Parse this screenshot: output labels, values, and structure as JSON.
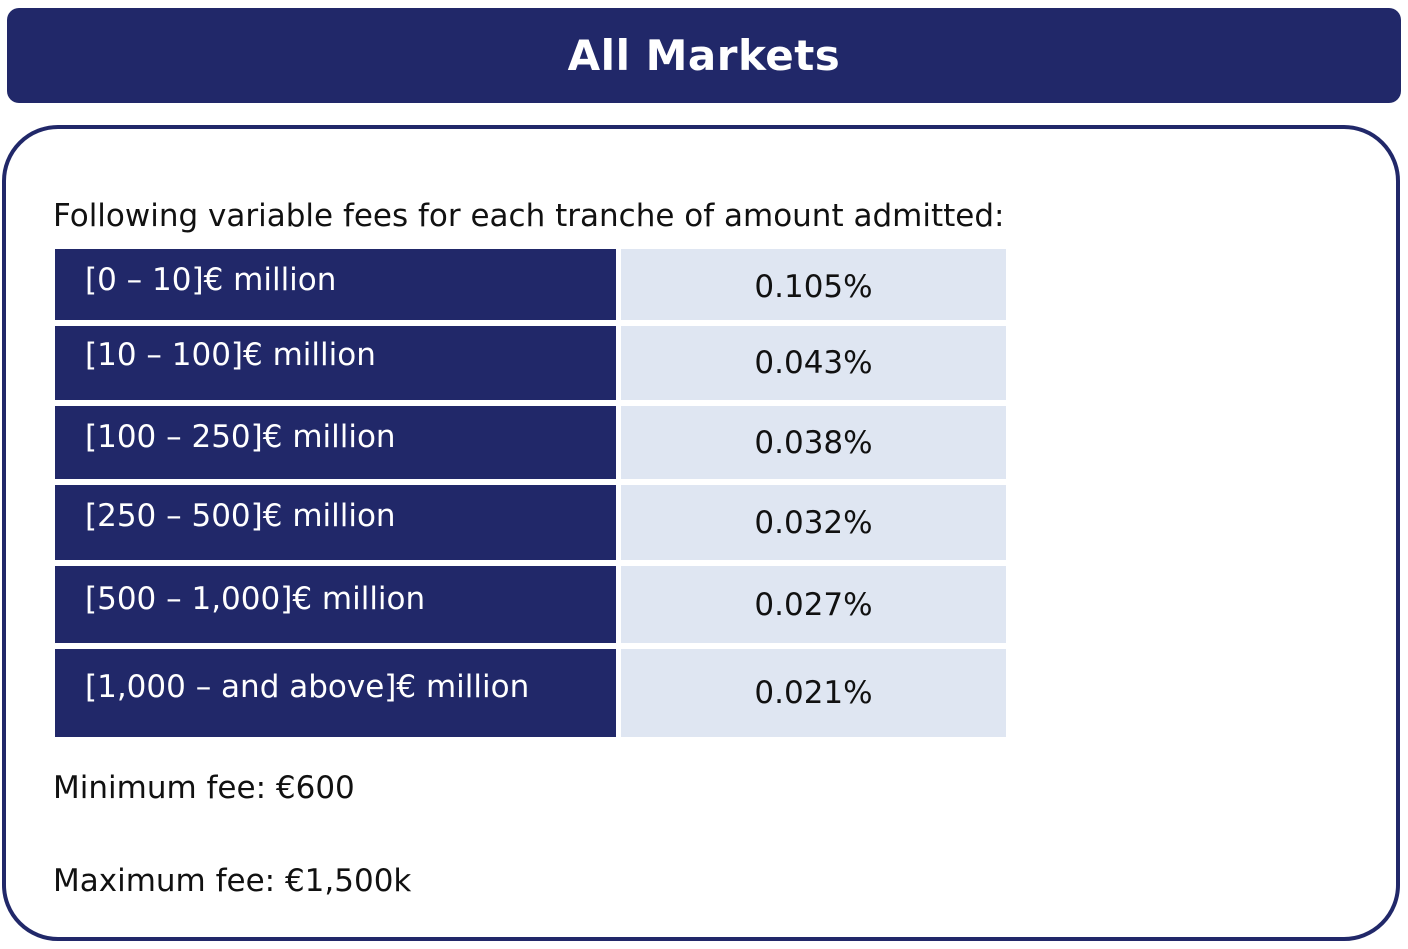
{
  "header": {
    "title": "All Markets"
  },
  "content": {
    "intro": "Following variable fees for each tranche of amount admitted:",
    "tranches": [
      {
        "range": "[0 – 10]€ million",
        "fee": "0.105%"
      },
      {
        "range": "[10 – 100]€ million",
        "fee": "0.043%"
      },
      {
        "range": "[100 – 250]€ million",
        "fee": "0.038%"
      },
      {
        "range": "[250 – 500]€ million",
        "fee": "0.032%"
      },
      {
        "range": "[500 – 1,000]€ million",
        "fee": "0.027%"
      },
      {
        "range": "[1,000 – and above]€ million",
        "fee": "0.021%"
      }
    ],
    "minimum_fee": "Minimum fee: €600",
    "maximum_fee": "Maximum fee: €1,500k"
  },
  "colors": {
    "navy": "#212869",
    "light_blue_cell": "#dfe6f2",
    "text": "#111111"
  }
}
